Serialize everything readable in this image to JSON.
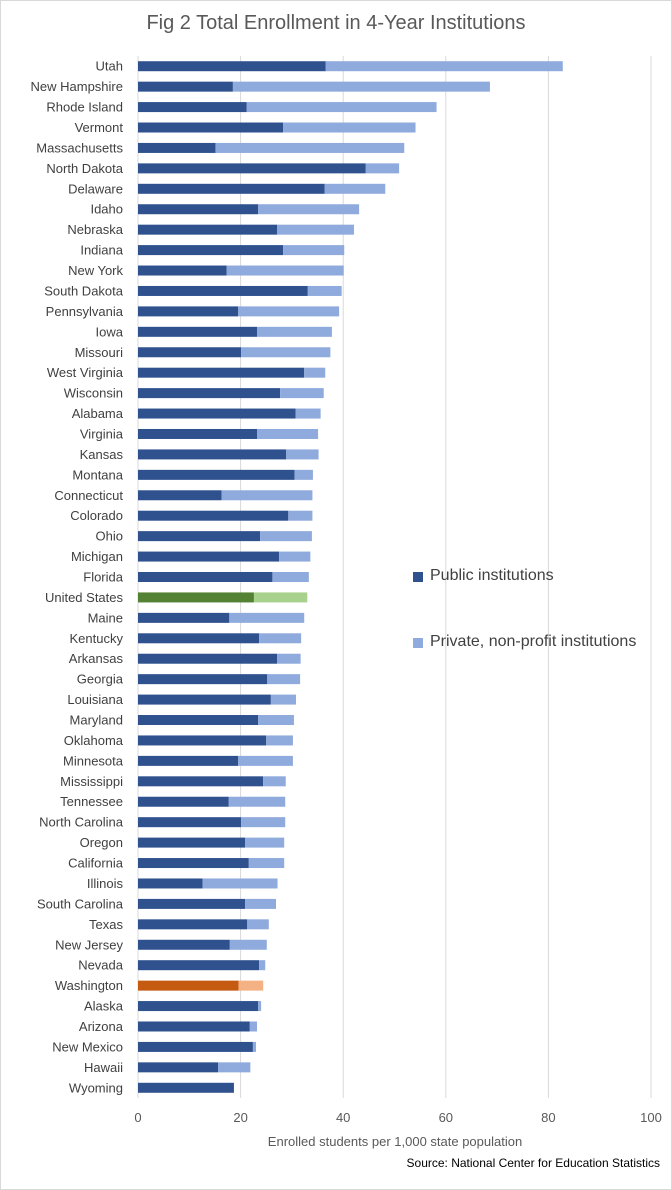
{
  "chart_data": {
    "type": "bar",
    "orientation": "horizontal",
    "stacked": true,
    "title": "Fig 2 Total Enrollment in 4-Year Institutions",
    "xlabel": "Enrolled students per 1,000 state population",
    "ylabel": "",
    "xlim": [
      0,
      100
    ],
    "xticks": [
      "0",
      "20",
      "40",
      "60",
      "80",
      "100"
    ],
    "xtick_values": [
      0,
      20,
      40,
      60,
      80,
      100
    ],
    "grid": "vertical",
    "legend_position": "right",
    "source": "Source: National Center for Education Statistics",
    "categories": [
      "Utah",
      "New Hampshire",
      "Rhode Island",
      "Vermont",
      "Massachusetts",
      "North Dakota",
      "Delaware",
      "Idaho",
      "Nebraska",
      "Indiana",
      "New York",
      "South Dakota",
      "Pennsylvania",
      "Iowa",
      "Missouri",
      "West Virginia",
      "Wisconsin",
      "Alabama",
      "Virginia",
      "Kansas",
      "Montana",
      "Connecticut",
      "Colorado",
      "Ohio",
      "Michigan",
      "Florida",
      "United States",
      "Maine",
      "Kentucky",
      "Arkansas",
      "Georgia",
      "Louisiana",
      "Maryland",
      "Oklahoma",
      "Minnesota",
      "Mississippi",
      "Tennessee",
      "North Carolina",
      "Oregon",
      "California",
      "Illinois",
      "South Carolina",
      "Texas",
      "New Jersey",
      "Nevada",
      "Washington",
      "Alaska",
      "Arizona",
      "New Mexico",
      "Hawaii",
      "Wyoming"
    ],
    "series": [
      {
        "name": "Public institutions",
        "color": "#2f528f",
        "values": [
          36.6,
          18.5,
          21.2,
          28.3,
          15.1,
          44.4,
          36.4,
          23.4,
          27.1,
          28.3,
          17.3,
          33.1,
          19.5,
          23.2,
          20.1,
          32.4,
          27.7,
          30.7,
          23.2,
          28.9,
          30.5,
          16.3,
          29.3,
          23.8,
          27.5,
          26.2,
          22.6,
          17.8,
          23.6,
          27.1,
          25.2,
          25.9,
          23.4,
          25.0,
          19.5,
          24.4,
          17.7,
          20.1,
          20.9,
          21.6,
          12.6,
          20.9,
          21.3,
          17.9,
          23.6,
          19.6,
          23.4,
          21.8,
          22.4,
          15.6,
          18.7
        ]
      },
      {
        "name": "Private, non-profit institutions",
        "color": "#8faadc",
        "values": [
          46.2,
          50.1,
          37.0,
          25.8,
          36.8,
          6.5,
          11.8,
          19.7,
          15.0,
          11.9,
          22.8,
          6.6,
          19.7,
          14.6,
          17.4,
          4.1,
          8.5,
          4.9,
          11.9,
          6.3,
          3.6,
          17.7,
          4.7,
          10.1,
          6.1,
          7.1,
          10.4,
          14.6,
          8.2,
          4.6,
          6.4,
          4.9,
          7.0,
          5.2,
          10.7,
          4.4,
          11.0,
          8.6,
          7.6,
          6.9,
          14.6,
          6.0,
          4.2,
          7.2,
          1.2,
          4.8,
          0.6,
          1.4,
          0.6,
          6.3,
          0.0
        ]
      }
    ],
    "highlights": [
      {
        "category": "United States",
        "colors": [
          "#548235",
          "#a9d18e"
        ]
      },
      {
        "category": "Washington",
        "colors": [
          "#c55a11",
          "#f4b183"
        ]
      }
    ]
  }
}
